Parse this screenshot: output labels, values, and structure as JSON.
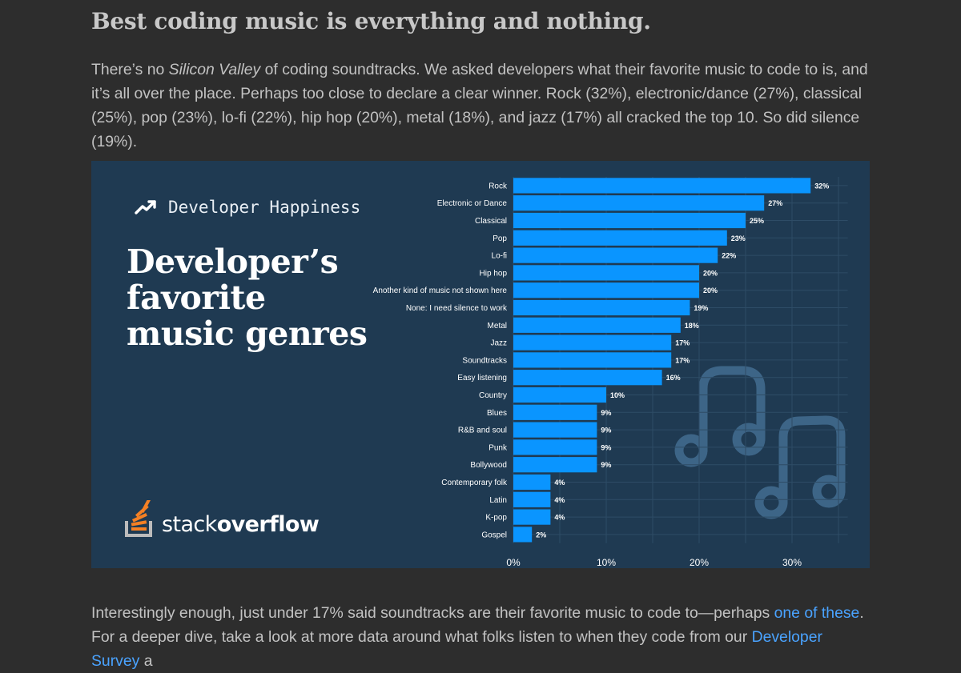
{
  "article": {
    "heading": "Best coding music is everything and nothing.",
    "intro_before_em": "There’s no ",
    "intro_em": "Silicon Valley",
    "intro_after_em": " of coding soundtracks. We asked developers what their favorite music to code to is, and it’s all over the place. Perhaps too close to declare a clear winner. Rock (32%), electronic/dance (27%), classical (25%), pop (23%), lo-fi (22%), hip hop (20%), metal (18%), and jazz (17%) all cracked the top 10. So did silence (19%).",
    "followup_before_link1": "Interestingly enough, just under 17% said soundtracks are their favorite music to code to—perhaps ",
    "followup_link1": "one of these",
    "followup_between": ". For a deeper dive, take a look at more data around what folks listen to when they code from our ",
    "followup_link2": "Developer Survey",
    "followup_after": " a"
  },
  "figure": {
    "kicker": "Developer Happiness",
    "title": "Developer’s favorite music genres",
    "logo_text_regular": "stack",
    "logo_text_bold": "overflow",
    "background_color": "#1f3a52",
    "bar_color": "#0a95ff",
    "icons": [
      "trend-up-icon",
      "stack-overflow-logo-icon",
      "music-note-icon"
    ]
  },
  "chart_data": {
    "type": "bar",
    "orientation": "horizontal",
    "categories": [
      "Rock",
      "Electronic or Dance",
      "Classical",
      "Pop",
      "Lo-fi",
      "Hip hop",
      "Another kind of music not shown here",
      "None: I need silence to work",
      "Metal",
      "Jazz",
      "Soundtracks",
      "Easy listening",
      "Country",
      "Blues",
      "R&B and soul",
      "Punk",
      "Bollywood",
      "Contemporary folk",
      "Latin",
      "K-pop",
      "Gospel"
    ],
    "values": [
      32,
      27,
      25,
      23,
      22,
      20,
      20,
      19,
      18,
      17,
      17,
      16,
      10,
      9,
      9,
      9,
      9,
      4,
      4,
      4,
      2
    ],
    "value_labels": [
      "32%",
      "27%",
      "25%",
      "23%",
      "22%",
      "20%",
      "20%",
      "19%",
      "18%",
      "17%",
      "17%",
      "16%",
      "10%",
      "9%",
      "9%",
      "9%",
      "9%",
      "4%",
      "4%",
      "4%",
      "2%"
    ],
    "xticks": [
      "0%",
      "10%",
      "20%",
      "30%"
    ],
    "xtick_values": [
      0,
      10,
      20,
      30
    ],
    "xlim": [
      0,
      36
    ],
    "grid": true,
    "legend": "none"
  }
}
